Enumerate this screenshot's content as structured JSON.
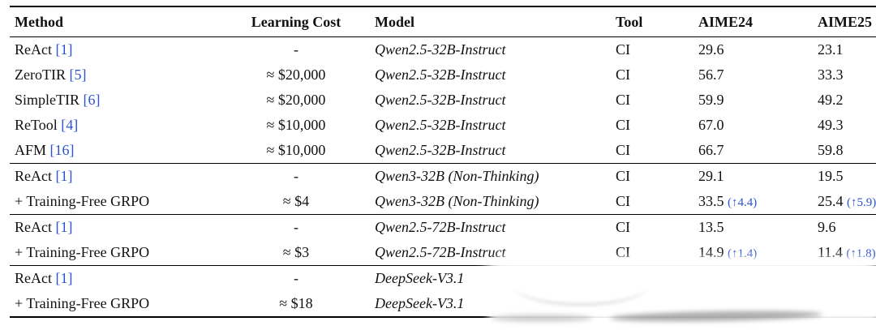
{
  "colors": {
    "citation_blue": "#2a52d4",
    "delta_blue": "#2a52d4",
    "text": "#111111",
    "rule": "#000000"
  },
  "table": {
    "columns": [
      {
        "key": "method",
        "label": "Method"
      },
      {
        "key": "cost",
        "label": "Learning Cost"
      },
      {
        "key": "model",
        "label": "Model"
      },
      {
        "key": "tool",
        "label": "Tool"
      },
      {
        "key": "aime24",
        "label": "AIME24"
      },
      {
        "key": "aime25",
        "label": "AIME25"
      }
    ],
    "sections": [
      {
        "rows": [
          {
            "method": "ReAct",
            "cite": "[1]",
            "cost": "-",
            "model": "Qwen2.5-32B-Instruct",
            "tool": "CI",
            "aime24": "29.6",
            "aime24_delta": "",
            "aime25": "23.1",
            "aime25_delta": ""
          },
          {
            "method": "ZeroTIR",
            "cite": "[5]",
            "cost": "≈ $20,000",
            "model": "Qwen2.5-32B-Instruct",
            "tool": "CI",
            "aime24": "56.7",
            "aime24_delta": "",
            "aime25": "33.3",
            "aime25_delta": ""
          },
          {
            "method": "SimpleTIR",
            "cite": "[6]",
            "cost": "≈ $20,000",
            "model": "Qwen2.5-32B-Instruct",
            "tool": "CI",
            "aime24": "59.9",
            "aime24_delta": "",
            "aime25": "49.2",
            "aime25_delta": ""
          },
          {
            "method": "ReTool",
            "cite": "[4]",
            "cost": "≈ $10,000",
            "model": "Qwen2.5-32B-Instruct",
            "tool": "CI",
            "aime24": "67.0",
            "aime24_delta": "",
            "aime25": "49.3",
            "aime25_delta": ""
          },
          {
            "method": "AFM",
            "cite": "[16]",
            "cost": "≈ $10,000",
            "model": "Qwen2.5-32B-Instruct",
            "tool": "CI",
            "aime24": "66.7",
            "aime24_delta": "",
            "aime25": "59.8",
            "aime25_delta": ""
          }
        ]
      },
      {
        "rows": [
          {
            "method": "ReAct",
            "cite": "[1]",
            "cost": "-",
            "model": "Qwen3-32B (Non-Thinking)",
            "tool": "CI",
            "aime24": "29.1",
            "aime24_delta": "",
            "aime25": "19.5",
            "aime25_delta": ""
          },
          {
            "method": "+ Training-Free GRPO",
            "cite": "",
            "cost": "≈ $4",
            "model": "Qwen3-32B (Non-Thinking)",
            "tool": "CI",
            "aime24": "33.5",
            "aime24_delta": "(↑4.4)",
            "aime25": "25.4",
            "aime25_delta": "(↑5.9)"
          }
        ]
      },
      {
        "rows": [
          {
            "method": "ReAct",
            "cite": "[1]",
            "cost": "-",
            "model": "Qwen2.5-72B-Instruct",
            "tool": "CI",
            "aime24": "13.5",
            "aime24_delta": "",
            "aime25": "9.6",
            "aime25_delta": ""
          },
          {
            "method": "+ Training-Free GRPO",
            "cite": "",
            "cost": "≈ $3",
            "model": "Qwen2.5-72B-Instruct",
            "tool": "CI",
            "aime24": "14.9",
            "aime24_delta": "(↑1.4)",
            "aime25": "11.4",
            "aime25_delta": "(↑1.8)"
          }
        ]
      },
      {
        "rows": [
          {
            "method": "ReAct",
            "cite": "[1]",
            "cost": "-",
            "model": "DeepSeek-V3.1",
            "tool": "",
            "aime24": "",
            "aime24_delta": "",
            "aime25": "",
            "aime25_delta": "",
            "obscured": true
          },
          {
            "method": "+ Training-Free GRPO",
            "cite": "",
            "cost": "≈ $18",
            "model": "DeepSeek-V3.1",
            "tool": "",
            "aime24": "",
            "aime24_delta": "",
            "aime25": "",
            "aime25_delta": "",
            "obscured": true
          }
        ]
      }
    ]
  }
}
